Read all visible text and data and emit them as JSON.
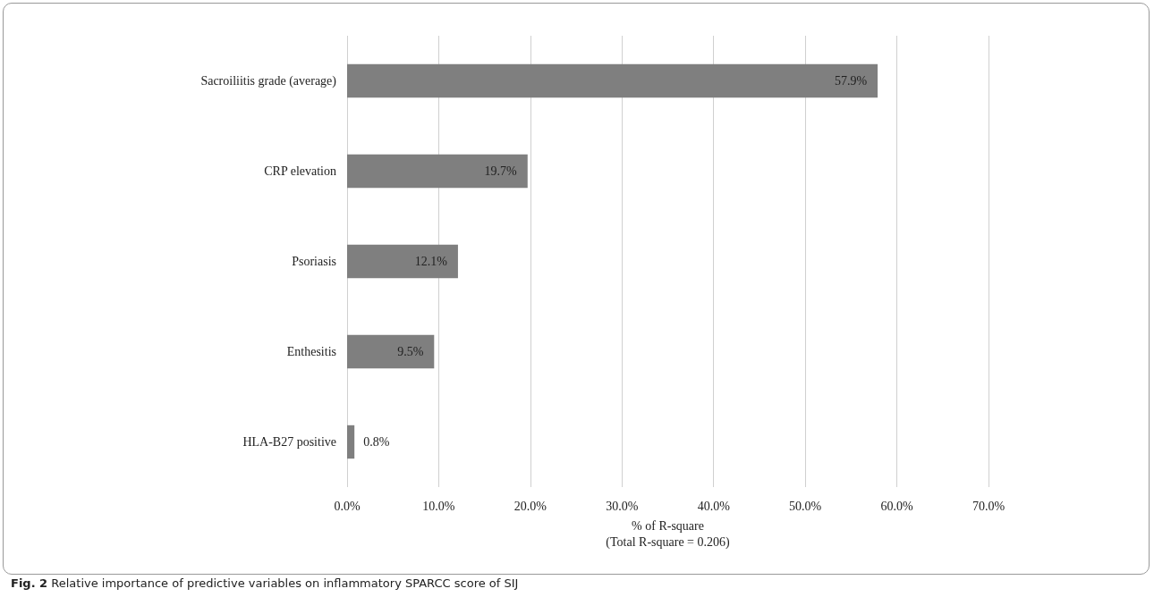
{
  "chart_data": {
    "type": "bar",
    "orientation": "horizontal",
    "categories": [
      "Sacroiliitis grade (average)",
      "CRP elevation",
      "Psoriasis",
      "Enthesitis",
      "HLA-B27 positive"
    ],
    "values": [
      57.9,
      19.7,
      12.1,
      9.5,
      0.8
    ],
    "value_labels": [
      "57.9%",
      "19.7%",
      "12.1%",
      "9.5%",
      "0.8%"
    ],
    "color": "#7f7f7f",
    "xlim": [
      0,
      70
    ],
    "xticks": [
      {
        "value": 0,
        "label": "0.0%"
      },
      {
        "value": 10,
        "label": "10.0%"
      },
      {
        "value": 20,
        "label": "20.0%"
      },
      {
        "value": 30,
        "label": "30.0%"
      },
      {
        "value": 40,
        "label": "40.0%"
      },
      {
        "value": 50,
        "label": "50.0%"
      },
      {
        "value": 60,
        "label": "60.0%"
      },
      {
        "value": 70,
        "label": "70.0%"
      }
    ],
    "xlabel": "% of R-square\n(Total R-square = 0.206)",
    "grid": "x",
    "annotations": [
      "Fig. 2 Relative importance of predictive variables on inflammatory SPARCC score of SIJ"
    ]
  }
}
